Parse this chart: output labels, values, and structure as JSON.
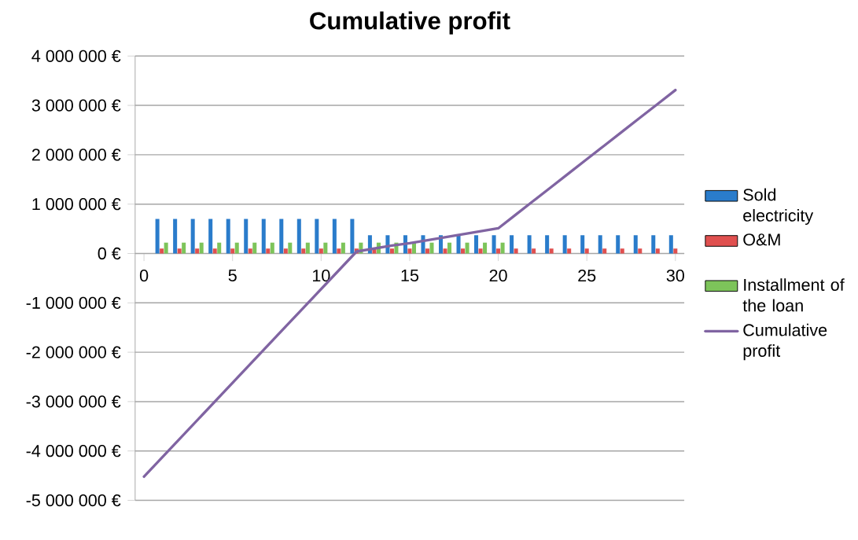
{
  "chart_data": {
    "type": "bar",
    "title": "Cumulative profit",
    "x": [
      1,
      2,
      3,
      4,
      5,
      6,
      7,
      8,
      9,
      10,
      11,
      12,
      13,
      14,
      15,
      16,
      17,
      18,
      19,
      20,
      21,
      22,
      23,
      24,
      25,
      26,
      27,
      28,
      29,
      30
    ],
    "series": [
      {
        "name": "Sold electricity",
        "color": "#2a7ccb",
        "values": [
          700000,
          700000,
          700000,
          700000,
          700000,
          700000,
          700000,
          700000,
          700000,
          700000,
          700000,
          700000,
          370000,
          370000,
          370000,
          370000,
          370000,
          370000,
          370000,
          370000,
          370000,
          370000,
          370000,
          370000,
          370000,
          370000,
          370000,
          370000,
          370000,
          370000
        ]
      },
      {
        "name": "O&M",
        "color": "#e0504f",
        "values": [
          100000,
          100000,
          100000,
          100000,
          100000,
          100000,
          100000,
          100000,
          100000,
          100000,
          100000,
          100000,
          100000,
          100000,
          100000,
          100000,
          100000,
          100000,
          100000,
          100000,
          100000,
          100000,
          100000,
          100000,
          100000,
          100000,
          100000,
          100000,
          100000,
          100000
        ]
      },
      {
        "name": "Installment of the loan",
        "color": "#7dc45a",
        "values": [
          220000,
          220000,
          220000,
          220000,
          220000,
          220000,
          220000,
          220000,
          220000,
          220000,
          220000,
          220000,
          220000,
          220000,
          220000,
          220000,
          220000,
          220000,
          220000,
          220000,
          null,
          null,
          null,
          null,
          null,
          null,
          null,
          null,
          null,
          null
        ]
      },
      {
        "name": "Cumulative profit",
        "type": "line",
        "color": "#8064a2",
        "x": [
          0,
          1,
          2,
          3,
          4,
          5,
          6,
          7,
          8,
          9,
          10,
          11,
          12,
          13,
          14,
          15,
          16,
          17,
          18,
          19,
          20,
          21,
          22,
          23,
          24,
          25,
          26,
          27,
          28,
          29,
          30
        ],
        "values": [
          -4520000,
          -4140000,
          -3760000,
          -3380000,
          -3000000,
          -2620000,
          -2240000,
          -1860000,
          -1480000,
          -1100000,
          -720000,
          -340000,
          40000,
          100000,
          160000,
          210000,
          270000,
          330000,
          390000,
          450000,
          510000,
          790000,
          1070000,
          1350000,
          1630000,
          1910000,
          2190000,
          2470000,
          2750000,
          3030000,
          3310000
        ]
      }
    ],
    "xlim": [
      -0.5,
      30.5
    ],
    "xticks": [
      0,
      5,
      10,
      15,
      20,
      25,
      30
    ],
    "ylim": [
      -5000000,
      4000000
    ],
    "yticks": [
      {
        "value": -5000000,
        "label": "-5 000 000 €"
      },
      {
        "value": -4000000,
        "label": "-4 000 000 €"
      },
      {
        "value": -3000000,
        "label": "-3 000 000 €"
      },
      {
        "value": -2000000,
        "label": "-2 000 000 €"
      },
      {
        "value": -1000000,
        "label": "-1 000 000 €"
      },
      {
        "value": 0,
        "label": "0 €"
      },
      {
        "value": 1000000,
        "label": "1 000 000 €"
      },
      {
        "value": 2000000,
        "label": "2 000 000 €"
      },
      {
        "value": 3000000,
        "label": "3 000 000 €"
      },
      {
        "value": 4000000,
        "label": "4 000 000 €"
      }
    ],
    "grid": "y",
    "legend": "right",
    "marker": "none",
    "line_style": "solid"
  }
}
